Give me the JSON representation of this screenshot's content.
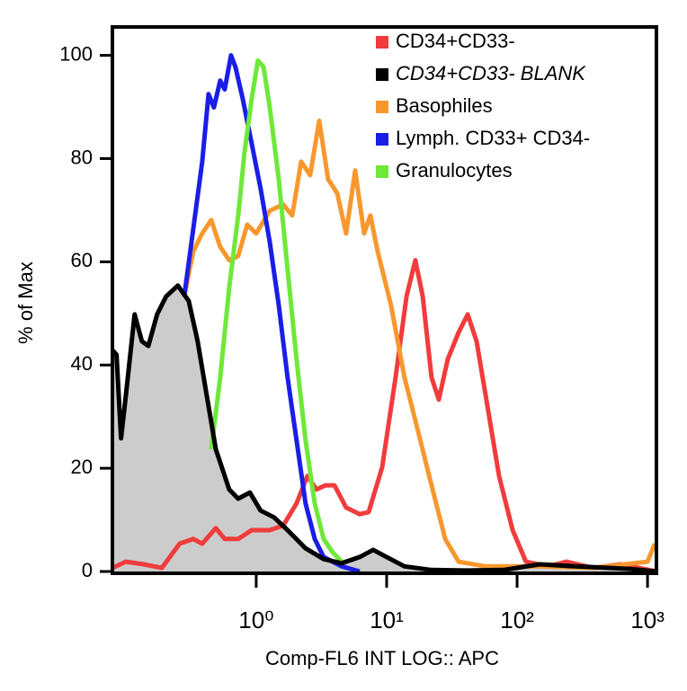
{
  "chart_data": {
    "type": "line",
    "x_label": "Comp-FL6 INT LOG:: APC",
    "y_label": "% of Max",
    "x_log": true,
    "xlim": [
      0.079,
      1170
    ],
    "ylim": [
      0,
      105.5
    ],
    "xticks": [
      {
        "value": 1,
        "label": "10⁰"
      },
      {
        "value": 10,
        "label": "10¹"
      },
      {
        "value": 100,
        "label": "10²"
      },
      {
        "value": 1000,
        "label": "10³"
      }
    ],
    "yticks": [
      0,
      20,
      40,
      60,
      80,
      100
    ],
    "legend": "upper right",
    "series": [
      {
        "name": "CD34+CD33- BLANK",
        "color": "#000000",
        "fill": "#cccccc",
        "font_style": "italic",
        "x": [
          0.079,
          0.085,
          0.092,
          0.1,
          0.117,
          0.133,
          0.149,
          0.174,
          0.204,
          0.251,
          0.304,
          0.356,
          0.418,
          0.49,
          0.621,
          0.728,
          0.895,
          1.08,
          1.37,
          1.74,
          2.39,
          3.29,
          4.52,
          6.21,
          7.88,
          10,
          13.7,
          22.1,
          41.8,
          78.8,
          149,
          281,
          728,
          1170
        ],
        "values": [
          42.9,
          42,
          25.8,
          34,
          49.8,
          44.6,
          43.7,
          49.8,
          53.3,
          55.4,
          52.4,
          44.6,
          34,
          23.7,
          15.9,
          14.1,
          15.3,
          11.8,
          10.5,
          8,
          4.5,
          2.4,
          1.6,
          2.8,
          4.2,
          2.8,
          1,
          0.3,
          0.2,
          0.3,
          1.4,
          1,
          0.5,
          0
        ]
      },
      {
        "name": "CD34+CD33-",
        "color": "#f03c3c",
        "x": [
          0.079,
          0.1,
          0.137,
          0.189,
          0.259,
          0.329,
          0.386,
          0.49,
          0.574,
          0.728,
          0.924,
          1.27,
          1.61,
          2.04,
          2.47,
          2.9,
          3.4,
          3.98,
          4.89,
          6.21,
          7.28,
          9.24,
          11.7,
          14.2,
          16.6,
          18.9,
          22.1,
          25.1,
          29.4,
          35.6,
          41.8,
          48.9,
          57.4,
          72.8,
          92.4,
          117,
          174,
          239,
          386,
          621,
          853,
          1170
        ],
        "values": [
          0.7,
          1.9,
          1.4,
          0.7,
          5.4,
          6.3,
          5.4,
          8.4,
          6.3,
          6.3,
          8,
          8,
          8.9,
          13.2,
          18.5,
          15.9,
          16.7,
          16.7,
          12.4,
          11.1,
          11.5,
          20.2,
          37.6,
          53.3,
          60.3,
          53.3,
          37.6,
          33.3,
          41.1,
          46.3,
          49.8,
          44.6,
          34.1,
          18.5,
          8,
          1.9,
          1,
          1.9,
          0.7,
          1.4,
          0.7,
          0
        ]
      },
      {
        "name": "Basophiles",
        "color": "#f7982f",
        "x": [
          0.281,
          0.329,
          0.386,
          0.452,
          0.53,
          0.621,
          0.728,
          0.853,
          1,
          1.27,
          1.61,
          1.89,
          2.21,
          2.59,
          3.04,
          3.56,
          4.18,
          4.89,
          5.74,
          6.72,
          7.51,
          8.53,
          10.8,
          13.7,
          17.4,
          22.1,
          28.1,
          35.6,
          57.4,
          149,
          386,
          1000,
          1135
        ],
        "values": [
          53.3,
          62,
          65.5,
          68.1,
          62.9,
          60.3,
          61.1,
          67.2,
          65.5,
          69.9,
          71.1,
          69,
          79.4,
          76.8,
          87.3,
          76,
          73.3,
          65.5,
          77.7,
          65.5,
          69,
          62,
          51.6,
          37.6,
          27.2,
          16.7,
          6.3,
          1.9,
          1,
          1,
          0.7,
          1.9,
          5.4
        ]
      },
      {
        "name": "Lymph. CD33+ CD34-",
        "color": "#1a1ee6",
        "x": [
          0.281,
          0.386,
          0.431,
          0.474,
          0.53,
          0.574,
          0.641,
          0.694,
          0.788,
          0.924,
          1.08,
          1.27,
          1.49,
          1.74,
          2.04,
          2.39,
          2.81,
          3.29,
          4.52,
          6.21
        ],
        "values": [
          53.3,
          79.4,
          92.5,
          89.9,
          95.1,
          93.4,
          100,
          97.7,
          91.6,
          82.9,
          74.2,
          63.8,
          51.6,
          37.6,
          25.4,
          13.2,
          6.3,
          2.8,
          1,
          0
        ]
      },
      {
        "name": "Granulocytes",
        "color": "#6ee83a",
        "x": [
          0.452,
          0.53,
          0.621,
          0.728,
          0.813,
          0.924,
          1.03,
          1.14,
          1.27,
          1.49,
          1.74,
          2.04,
          2.39,
          2.81,
          3.29,
          3.86,
          4.52
        ],
        "values": [
          23.7,
          37.6,
          55,
          69,
          81.2,
          91.6,
          99,
          97.7,
          89.9,
          76,
          58.5,
          41.1,
          25.4,
          13.2,
          6.3,
          3.7,
          1.9
        ]
      }
    ],
    "legend_order": [
      1,
      0,
      2,
      3,
      4
    ]
  }
}
